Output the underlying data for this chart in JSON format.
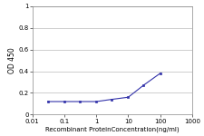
{
  "x_values": [
    0.03,
    0.1,
    0.3,
    1,
    3,
    10,
    30,
    100
  ],
  "y_values": [
    0.12,
    0.12,
    0.12,
    0.12,
    0.14,
    0.16,
    0.27,
    0.38
  ],
  "line_color": "#3333aa",
  "marker_color": "#3333aa",
  "marker_style": "s",
  "marker_size": 2.0,
  "line_width": 0.8,
  "xlabel": "Recombinant ProteinConcentration(ng/ml)",
  "ylabel": "OD 450",
  "xlim": [
    0.01,
    1000
  ],
  "ylim": [
    0,
    1
  ],
  "yticks": [
    0,
    0.2,
    0.4,
    0.6,
    0.8,
    1
  ],
  "xticks": [
    0.01,
    0.1,
    1,
    10,
    100,
    1000
  ],
  "xtick_labels": [
    "0.01",
    "0.1",
    "1",
    "10",
    "100",
    "1000"
  ],
  "grid_color": "#bbbbbb",
  "background_color": "#ffffff",
  "xlabel_fontsize": 5.0,
  "ylabel_fontsize": 5.5,
  "tick_fontsize": 5.0
}
